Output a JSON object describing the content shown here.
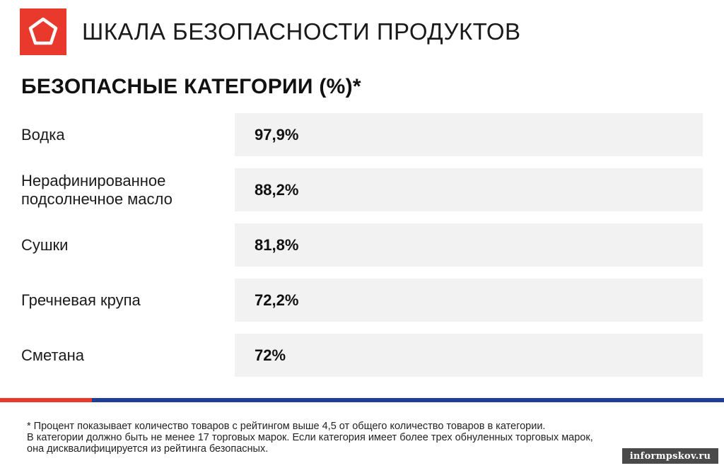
{
  "header": {
    "title": "ШКАЛА БЕЗОПАСНОСТИ ПРОДУКТОВ",
    "logo_color": "#e8392c",
    "logo_icon": "pentagon-icon"
  },
  "section": {
    "title": "БЕЗОПАСНЫЕ КАТЕГОРИИ (%)*"
  },
  "rows": [
    {
      "label": "Водка",
      "value": "97,9%"
    },
    {
      "label": "Нерафинированное подсолнечное масло",
      "value": "88,2%"
    },
    {
      "label": "Сушки",
      "value": "81,8%"
    },
    {
      "label": "Гречневая крупа",
      "value": "72,2%"
    },
    {
      "label": "Сметана",
      "value": "72%"
    }
  ],
  "stripe_colors": {
    "red": "#e8392c",
    "blue": "#1f3e96"
  },
  "footnote": {
    "line1": "* Процент показывает количество товаров с рейтингом выше 4,5 от общего количество товаров в категории.",
    "line2": "В категории должно быть не менее 17 торговых марок. Если категория имеет более трех обнуленных торговых марок,",
    "line3": "она дисквалифицируется из рейтинга безопасных."
  },
  "watermark": "informpskov.ru"
}
